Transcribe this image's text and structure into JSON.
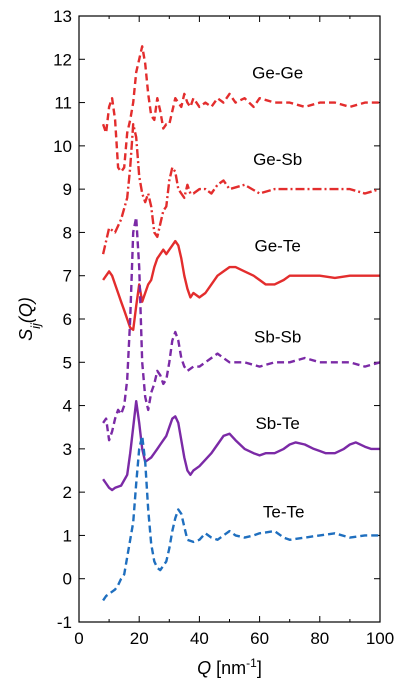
{
  "chart_data": {
    "type": "line",
    "xlabel": {
      "var": "Q",
      "unit_open": " [nm",
      "unit_sup": "-1",
      "unit_close": "]"
    },
    "ylabel": {
      "var": "S",
      "sub": "ij",
      "arg": "(Q)"
    },
    "xlim": [
      0,
      100
    ],
    "ylim": [
      -1,
      13
    ],
    "xticks": [
      0,
      20,
      40,
      60,
      80,
      100
    ],
    "yticks": [
      -1,
      0,
      1,
      2,
      3,
      4,
      5,
      6,
      7,
      8,
      9,
      10,
      11,
      12,
      13
    ],
    "grid": false,
    "colors": {
      "red": "#e32d2d",
      "purple": "#7b2aa6",
      "blue": "#1f6fbf"
    },
    "series": [
      {
        "name": "Ge-Ge",
        "color": "red",
        "dash": "dashed",
        "label_pos": [
          66,
          11.7
        ],
        "points": [
          [
            8,
            10.5
          ],
          [
            9,
            10.3
          ],
          [
            10,
            10.9
          ],
          [
            11,
            11.1
          ],
          [
            12,
            10.6
          ],
          [
            13,
            9.5
          ],
          [
            14,
            9.4
          ],
          [
            15,
            9.5
          ],
          [
            16,
            10.3
          ],
          [
            17,
            10.6
          ],
          [
            18,
            11.0
          ],
          [
            19,
            11.7
          ],
          [
            20,
            12.0
          ],
          [
            21,
            12.3
          ],
          [
            22,
            11.9
          ],
          [
            23,
            11.2
          ],
          [
            24,
            10.7
          ],
          [
            25,
            10.6
          ],
          [
            26,
            11.1
          ],
          [
            27,
            10.8
          ],
          [
            28,
            10.4
          ],
          [
            29,
            10.5
          ],
          [
            30,
            10.5
          ],
          [
            31,
            10.8
          ],
          [
            32,
            11.1
          ],
          [
            33,
            11.0
          ],
          [
            34,
            10.9
          ],
          [
            35,
            11.2
          ],
          [
            36,
            11.0
          ],
          [
            37,
            10.9
          ],
          [
            38,
            11.1
          ],
          [
            40,
            10.9
          ],
          [
            42,
            11.0
          ],
          [
            44,
            10.9
          ],
          [
            46,
            11.1
          ],
          [
            48,
            11.0
          ],
          [
            50,
            11.2
          ],
          [
            52,
            11.0
          ],
          [
            55,
            11.1
          ],
          [
            58,
            10.9
          ],
          [
            60,
            11.1
          ],
          [
            65,
            11.0
          ],
          [
            70,
            11.0
          ],
          [
            75,
            10.9
          ],
          [
            80,
            11.0
          ],
          [
            85,
            11.0
          ],
          [
            90,
            10.9
          ],
          [
            95,
            11.0
          ],
          [
            100,
            11.0
          ]
        ]
      },
      {
        "name": "Ge-Sb",
        "color": "red",
        "dash": "dashdot",
        "label_pos": [
          66,
          9.7
        ],
        "points": [
          [
            8,
            7.5
          ],
          [
            10,
            8.1
          ],
          [
            12,
            8.0
          ],
          [
            14,
            8.3
          ],
          [
            16,
            8.8
          ],
          [
            17,
            9.5
          ],
          [
            18,
            10.5
          ],
          [
            19,
            10.2
          ],
          [
            20,
            9.3
          ],
          [
            21,
            8.9
          ],
          [
            22,
            8.7
          ],
          [
            23,
            8.9
          ],
          [
            24,
            8.6
          ],
          [
            25,
            8.0
          ],
          [
            26,
            7.9
          ],
          [
            27,
            8.2
          ],
          [
            28,
            8.5
          ],
          [
            29,
            8.6
          ],
          [
            30,
            9.2
          ],
          [
            31,
            9.5
          ],
          [
            32,
            9.4
          ],
          [
            33,
            9.0
          ],
          [
            34,
            8.9
          ],
          [
            35,
            8.8
          ],
          [
            36,
            9.1
          ],
          [
            37,
            8.9
          ],
          [
            38,
            8.9
          ],
          [
            40,
            9.0
          ],
          [
            42,
            9.0
          ],
          [
            44,
            8.9
          ],
          [
            46,
            9.1
          ],
          [
            48,
            9.2
          ],
          [
            50,
            9.0
          ],
          [
            55,
            9.1
          ],
          [
            60,
            8.9
          ],
          [
            65,
            9.0
          ],
          [
            70,
            9.0
          ],
          [
            75,
            9.0
          ],
          [
            80,
            9.0
          ],
          [
            85,
            9.0
          ],
          [
            90,
            9.0
          ],
          [
            95,
            8.9
          ],
          [
            100,
            9.0
          ]
        ]
      },
      {
        "name": "Ge-Te",
        "color": "red",
        "dash": "solid",
        "label_pos": [
          66,
          7.7
        ],
        "points": [
          [
            8,
            6.9
          ],
          [
            9,
            7.0
          ],
          [
            10,
            7.1
          ],
          [
            11,
            7.0
          ],
          [
            12,
            6.8
          ],
          [
            13,
            6.6
          ],
          [
            14,
            6.4
          ],
          [
            15,
            6.2
          ],
          [
            16,
            6.0
          ],
          [
            17,
            5.8
          ],
          [
            18,
            5.75
          ],
          [
            19,
            6.3
          ],
          [
            20,
            6.8
          ],
          [
            21,
            6.4
          ],
          [
            22,
            6.6
          ],
          [
            23,
            6.8
          ],
          [
            24,
            6.9
          ],
          [
            25,
            7.2
          ],
          [
            26,
            7.4
          ],
          [
            27,
            7.5
          ],
          [
            28,
            7.6
          ],
          [
            29,
            7.5
          ],
          [
            30,
            7.6
          ],
          [
            31,
            7.7
          ],
          [
            32,
            7.8
          ],
          [
            33,
            7.7
          ],
          [
            34,
            7.4
          ],
          [
            35,
            7.0
          ],
          [
            36,
            6.7
          ],
          [
            37,
            6.5
          ],
          [
            38,
            6.6
          ],
          [
            40,
            6.5
          ],
          [
            42,
            6.6
          ],
          [
            44,
            6.8
          ],
          [
            46,
            7.0
          ],
          [
            48,
            7.1
          ],
          [
            50,
            7.2
          ],
          [
            52,
            7.2
          ],
          [
            55,
            7.1
          ],
          [
            58,
            7.0
          ],
          [
            60,
            6.9
          ],
          [
            62,
            6.8
          ],
          [
            65,
            6.8
          ],
          [
            68,
            6.9
          ],
          [
            70,
            7.0
          ],
          [
            72,
            7.0
          ],
          [
            75,
            7.0
          ],
          [
            78,
            7.0
          ],
          [
            80,
            7.0
          ],
          [
            85,
            6.95
          ],
          [
            90,
            7.0
          ],
          [
            95,
            7.0
          ],
          [
            100,
            7.0
          ]
        ]
      },
      {
        "name": "Sb-Sb",
        "color": "purple",
        "dash": "dashed",
        "label_pos": [
          66,
          5.6
        ],
        "points": [
          [
            8,
            3.6
          ],
          [
            9,
            3.7
          ],
          [
            10,
            3.2
          ],
          [
            11,
            3.4
          ],
          [
            12,
            3.7
          ],
          [
            13,
            3.9
          ],
          [
            14,
            3.8
          ],
          [
            15,
            4.0
          ],
          [
            16,
            4.6
          ],
          [
            17,
            6.0
          ],
          [
            18,
            8.0
          ],
          [
            19,
            8.35
          ],
          [
            20,
            7.2
          ],
          [
            21,
            5.0
          ],
          [
            22,
            4.2
          ],
          [
            23,
            3.9
          ],
          [
            24,
            4.3
          ],
          [
            25,
            4.5
          ],
          [
            26,
            4.8
          ],
          [
            27,
            4.7
          ],
          [
            28,
            4.5
          ],
          [
            29,
            4.6
          ],
          [
            30,
            5.0
          ],
          [
            31,
            5.5
          ],
          [
            32,
            5.7
          ],
          [
            33,
            5.5
          ],
          [
            34,
            5.1
          ],
          [
            35,
            4.9
          ],
          [
            36,
            4.8
          ],
          [
            38,
            4.9
          ],
          [
            40,
            4.9
          ],
          [
            42,
            5.0
          ],
          [
            44,
            5.1
          ],
          [
            46,
            5.2
          ],
          [
            48,
            5.1
          ],
          [
            50,
            5.0
          ],
          [
            55,
            5.0
          ],
          [
            60,
            4.9
          ],
          [
            65,
            5.0
          ],
          [
            70,
            5.0
          ],
          [
            75,
            5.1
          ],
          [
            80,
            5.0
          ],
          [
            85,
            5.0
          ],
          [
            90,
            5.0
          ],
          [
            95,
            4.9
          ],
          [
            100,
            5.0
          ]
        ]
      },
      {
        "name": "Sb-Te",
        "color": "purple",
        "dash": "solid",
        "label_pos": [
          66,
          3.6
        ],
        "points": [
          [
            8,
            2.3
          ],
          [
            9,
            2.2
          ],
          [
            10,
            2.1
          ],
          [
            11,
            2.05
          ],
          [
            12,
            2.1
          ],
          [
            14,
            2.15
          ],
          [
            16,
            2.4
          ],
          [
            17,
            2.9
          ],
          [
            18,
            3.5
          ],
          [
            19,
            4.1
          ],
          [
            20,
            3.6
          ],
          [
            21,
            3.0
          ],
          [
            22,
            2.7
          ],
          [
            23,
            2.75
          ],
          [
            24,
            2.8
          ],
          [
            25,
            2.9
          ],
          [
            26,
            3.0
          ],
          [
            27,
            3.1
          ],
          [
            28,
            3.2
          ],
          [
            29,
            3.3
          ],
          [
            30,
            3.5
          ],
          [
            31,
            3.7
          ],
          [
            32,
            3.75
          ],
          [
            33,
            3.6
          ],
          [
            34,
            3.2
          ],
          [
            35,
            2.8
          ],
          [
            36,
            2.5
          ],
          [
            37,
            2.4
          ],
          [
            38,
            2.5
          ],
          [
            40,
            2.6
          ],
          [
            42,
            2.75
          ],
          [
            44,
            2.9
          ],
          [
            46,
            3.1
          ],
          [
            48,
            3.3
          ],
          [
            50,
            3.35
          ],
          [
            52,
            3.2
          ],
          [
            55,
            3.0
          ],
          [
            58,
            2.9
          ],
          [
            60,
            2.85
          ],
          [
            62,
            2.9
          ],
          [
            65,
            2.9
          ],
          [
            68,
            3.0
          ],
          [
            70,
            3.1
          ],
          [
            72,
            3.15
          ],
          [
            75,
            3.1
          ],
          [
            78,
            3.0
          ],
          [
            80,
            2.95
          ],
          [
            82,
            2.9
          ],
          [
            85,
            2.9
          ],
          [
            88,
            3.0
          ],
          [
            90,
            3.1
          ],
          [
            92,
            3.15
          ],
          [
            95,
            3.05
          ],
          [
            97,
            3.0
          ],
          [
            100,
            3.0
          ]
        ]
      },
      {
        "name": "Te-Te",
        "color": "blue",
        "dash": "dashed",
        "label_pos": [
          68,
          1.55
        ],
        "points": [
          [
            8,
            -0.5
          ],
          [
            9,
            -0.4
          ],
          [
            10,
            -0.35
          ],
          [
            11,
            -0.3
          ],
          [
            12,
            -0.25
          ],
          [
            13,
            -0.15
          ],
          [
            14,
            0.0
          ],
          [
            15,
            0.1
          ],
          [
            16,
            0.5
          ],
          [
            17,
            0.9
          ],
          [
            18,
            1.3
          ],
          [
            19,
            2.2
          ],
          [
            20,
            3.0
          ],
          [
            21,
            3.3
          ],
          [
            22,
            2.7
          ],
          [
            23,
            1.6
          ],
          [
            24,
            0.8
          ],
          [
            25,
            0.4
          ],
          [
            26,
            0.25
          ],
          [
            27,
            0.2
          ],
          [
            28,
            0.3
          ],
          [
            29,
            0.4
          ],
          [
            30,
            0.7
          ],
          [
            31,
            1.1
          ],
          [
            32,
            1.4
          ],
          [
            33,
            1.6
          ],
          [
            34,
            1.5
          ],
          [
            35,
            1.2
          ],
          [
            36,
            0.9
          ],
          [
            38,
            0.85
          ],
          [
            40,
            0.9
          ],
          [
            42,
            1.05
          ],
          [
            44,
            0.95
          ],
          [
            46,
            0.9
          ],
          [
            48,
            1.0
          ],
          [
            50,
            1.1
          ],
          [
            52,
            1.0
          ],
          [
            55,
            0.95
          ],
          [
            58,
            1.0
          ],
          [
            60,
            1.05
          ],
          [
            65,
            1.1
          ],
          [
            68,
            0.95
          ],
          [
            70,
            0.9
          ],
          [
            75,
            0.95
          ],
          [
            80,
            1.0
          ],
          [
            85,
            1.05
          ],
          [
            90,
            0.95
          ],
          [
            95,
            1.0
          ],
          [
            100,
            1.0
          ]
        ]
      }
    ]
  }
}
